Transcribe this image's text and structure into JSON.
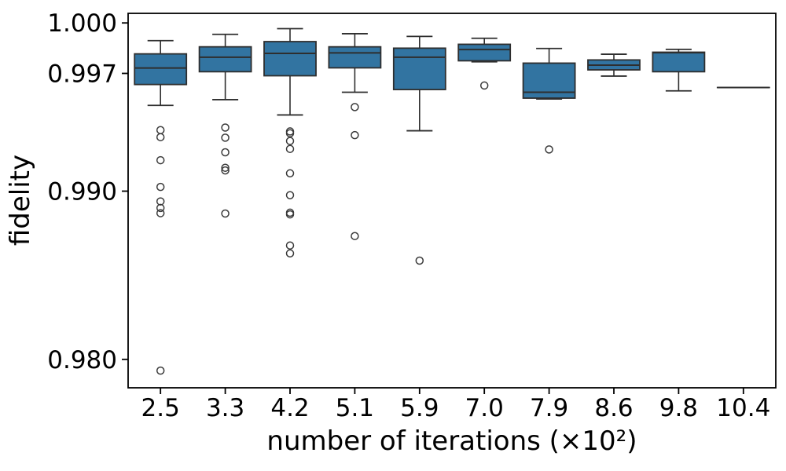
{
  "figure": {
    "background": "#ffffff"
  },
  "chart_data": {
    "type": "box",
    "title": "",
    "xlabel": "number of iterations (×10²)",
    "ylabel": "fidelity",
    "x_tick_labels": [
      "2.5",
      "3.3",
      "4.2",
      "5.1",
      "5.9",
      "7.0",
      "7.9",
      "8.6",
      "9.8",
      "10.4"
    ],
    "y_ticks": [
      {
        "label": "1.000",
        "value": 1.0
      },
      {
        "label": "0.997",
        "value": 0.997
      },
      {
        "label": "0.990",
        "value": 0.99
      },
      {
        "label": "0.980",
        "value": 0.98
      }
    ],
    "ylim": [
      0.97831,
      1.00057
    ],
    "grid": false,
    "legend": null,
    "colors": {
      "box_fill": "#3274a1",
      "box_edge": "#2e2e2e",
      "median": "#2e2e2e",
      "whisker": "#2e2e2e",
      "outlier_edge": "#3a3a3a",
      "spine": "#000000",
      "text": "#000000"
    },
    "boxes": [
      {
        "category": "2.5",
        "whisker_low": 0.9951,
        "q1": 0.99634,
        "median": 0.99732,
        "q3": 0.99816,
        "whisker_high": 0.99895,
        "outliers": [
          0.99363,
          0.99321,
          0.99184,
          0.99025,
          0.98939,
          0.989,
          0.98869,
          0.97933
        ]
      },
      {
        "category": "3.3",
        "whisker_low": 0.99544,
        "q1": 0.9971,
        "median": 0.99796,
        "q3": 0.99858,
        "whisker_high": 0.99932,
        "outliers": [
          0.99378,
          0.99318,
          0.99231,
          0.99139,
          0.99123,
          0.98867
        ]
      },
      {
        "category": "4.2",
        "whisker_low": 0.99453,
        "q1": 0.99686,
        "median": 0.99819,
        "q3": 0.99889,
        "whisker_high": 0.99966,
        "outliers": [
          0.99355,
          0.99344,
          0.99298,
          0.99251,
          0.99106,
          0.98976,
          0.98872,
          0.98862,
          0.98677,
          0.9863
        ]
      },
      {
        "category": "5.1",
        "whisker_low": 0.99588,
        "q1": 0.99733,
        "median": 0.99822,
        "q3": 0.99858,
        "whisker_high": 0.99936,
        "outliers": [
          0.995,
          0.99333,
          0.98733
        ]
      },
      {
        "category": "5.9",
        "whisker_low": 0.99359,
        "q1": 0.99604,
        "median": 0.99796,
        "q3": 0.9985,
        "whisker_high": 0.9992,
        "outliers": [
          0.98587
        ]
      },
      {
        "category": "7.0",
        "whisker_low": 0.99769,
        "q1": 0.99775,
        "median": 0.99842,
        "q3": 0.99873,
        "whisker_high": 0.99909,
        "outliers": [
          0.99628
        ]
      },
      {
        "category": "7.9",
        "whisker_low": 0.99548,
        "q1": 0.99553,
        "median": 0.99588,
        "q3": 0.99761,
        "whisker_high": 0.99848,
        "outliers": [
          0.99248
        ]
      },
      {
        "category": "8.6",
        "whisker_low": 0.99684,
        "q1": 0.99721,
        "median": 0.99749,
        "q3": 0.9978,
        "whisker_high": 0.99814,
        "outliers": []
      },
      {
        "category": "9.8",
        "whisker_low": 0.99596,
        "q1": 0.9971,
        "median": 0.99823,
        "q3": 0.99826,
        "whisker_high": 0.99843,
        "outliers": []
      },
      {
        "category": "10.4",
        "whisker_low": 0.99616,
        "q1": 0.99616,
        "median": 0.99616,
        "q3": 0.99616,
        "whisker_high": 0.99616,
        "outliers": []
      }
    ]
  }
}
